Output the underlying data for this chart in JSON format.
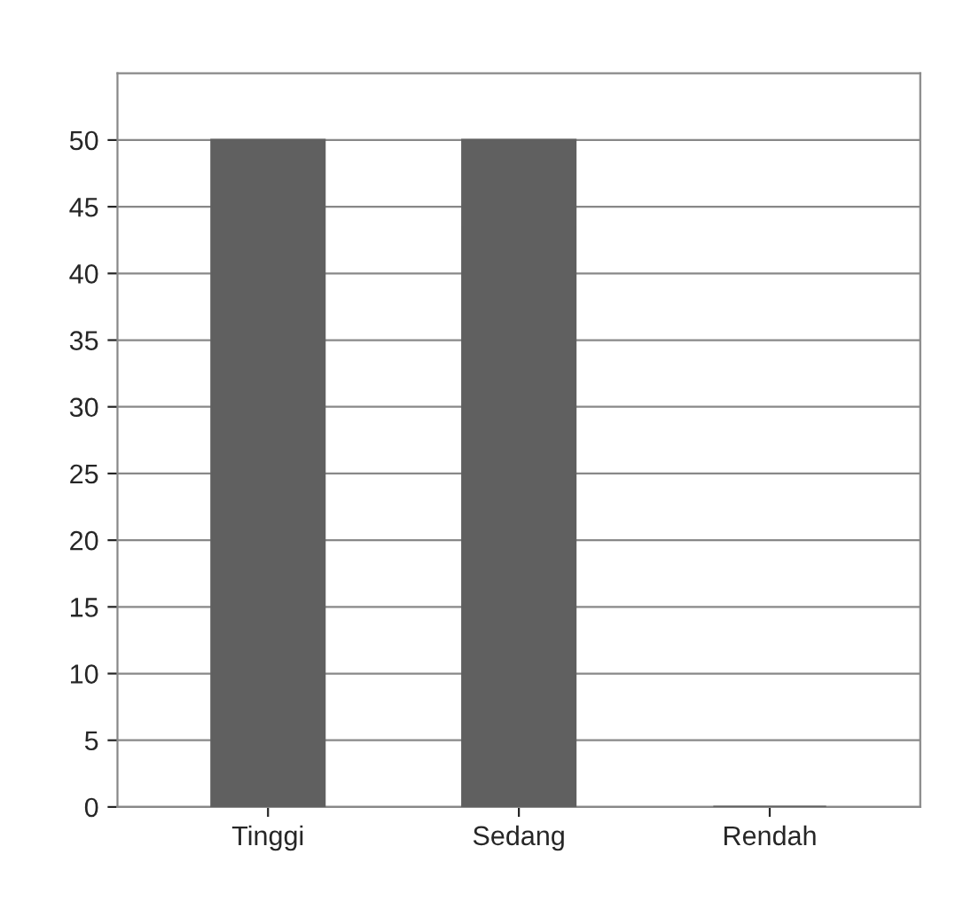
{
  "chart_data": {
    "type": "bar",
    "categories": [
      "Tinggi",
      "Sedang",
      "Rendah"
    ],
    "values": [
      50,
      50,
      0
    ],
    "color": "#606060",
    "ylim": [
      0,
      55
    ],
    "yticks": [
      0,
      5,
      10,
      15,
      20,
      25,
      30,
      35,
      40,
      45,
      50
    ],
    "grid": "y"
  }
}
